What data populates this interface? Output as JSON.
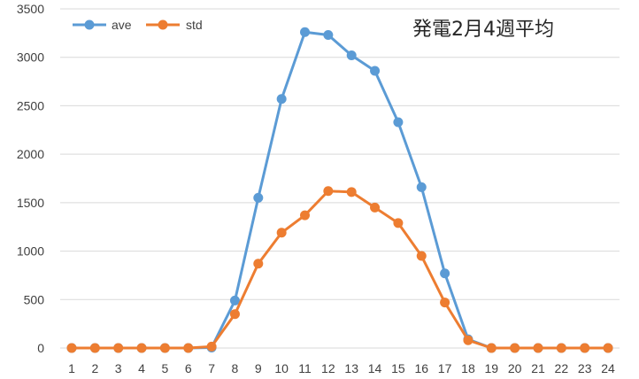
{
  "chart_data": {
    "type": "line",
    "title": "発電2月4週平均",
    "xlabel": "",
    "ylabel": "",
    "x": [
      1,
      2,
      3,
      4,
      5,
      6,
      7,
      8,
      9,
      10,
      11,
      12,
      13,
      14,
      15,
      16,
      17,
      18,
      19,
      20,
      21,
      22,
      23,
      24
    ],
    "x_tick_labels": [
      "1",
      "2",
      "3",
      "4",
      "5",
      "6",
      "7",
      "8",
      "9",
      "10",
      "11",
      "12",
      "13",
      "14",
      "15",
      "16",
      "17",
      "18",
      "19",
      "20",
      "21",
      "22",
      "23",
      "24"
    ],
    "ylim": [
      0,
      3500
    ],
    "y_ticks": [
      0,
      500,
      1000,
      1500,
      2000,
      2500,
      3000,
      3500
    ],
    "y_tick_labels": [
      "0",
      "500",
      "1000",
      "1500",
      "2000",
      "2500",
      "3000",
      "3500"
    ],
    "grid": "horizontal",
    "legend": "top-left",
    "series": [
      {
        "name": "ave",
        "color": "#5B9BD5",
        "values": [
          0,
          0,
          0,
          0,
          0,
          0,
          5,
          490,
          1550,
          2570,
          3260,
          3230,
          3020,
          2860,
          2330,
          1660,
          770,
          90,
          0,
          0,
          0,
          0,
          0,
          0
        ]
      },
      {
        "name": "std",
        "color": "#ED7D31",
        "values": [
          0,
          0,
          0,
          0,
          0,
          0,
          15,
          350,
          870,
          1190,
          1370,
          1620,
          1610,
          1450,
          1290,
          950,
          470,
          80,
          0,
          0,
          0,
          0,
          0,
          0
        ]
      }
    ]
  }
}
